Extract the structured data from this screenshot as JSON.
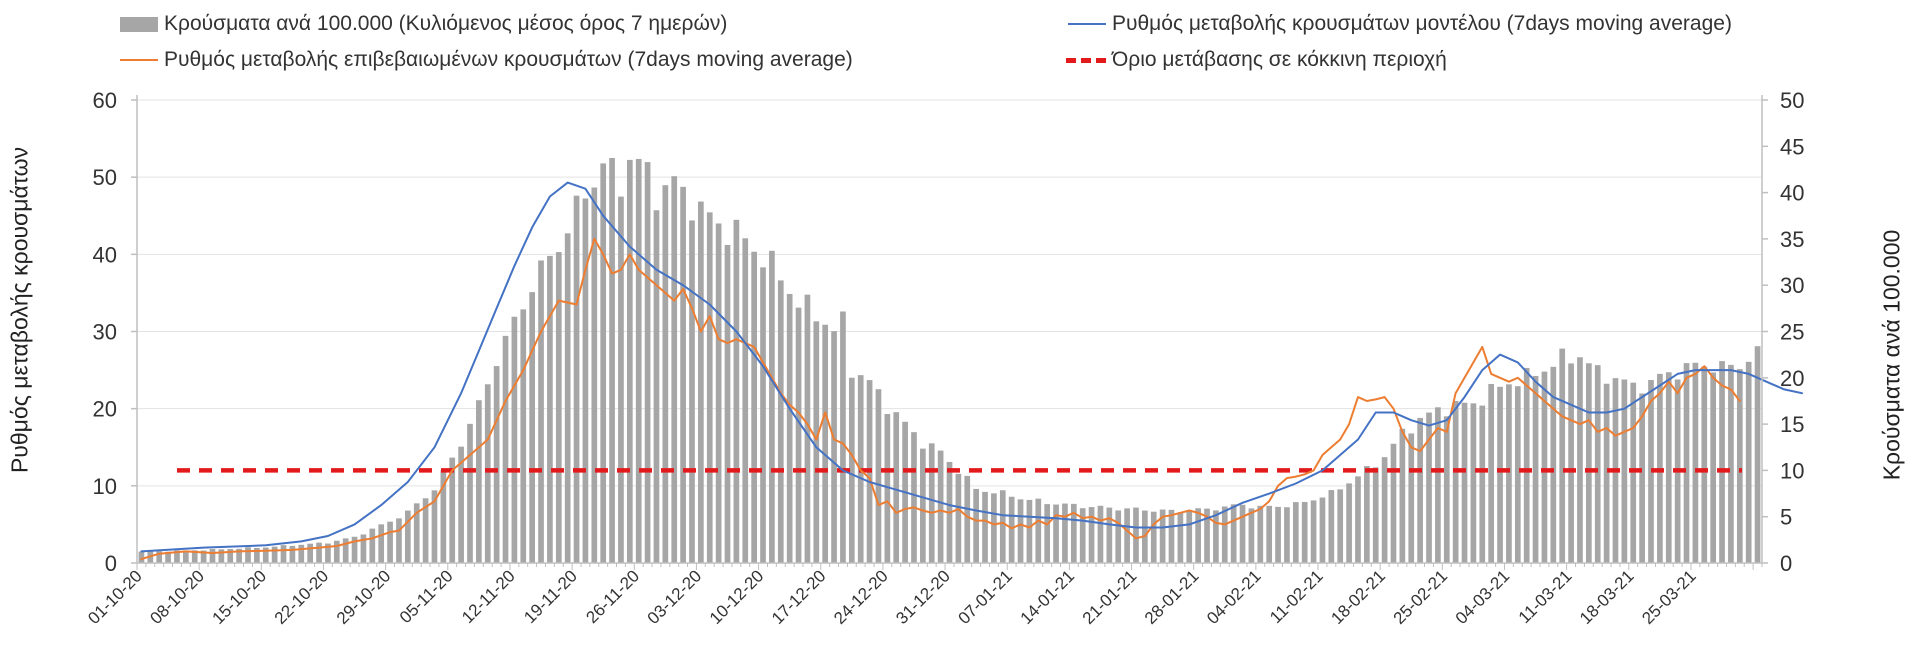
{
  "chart_data": {
    "type": "bar+line",
    "title": "",
    "legend": [
      {
        "label": "Κρούσματα ανά 100.000 (Κυλιόμενος μέσος όρος 7 ημερών)",
        "kind": "bar",
        "color": "#a6a6a6"
      },
      {
        "label": "Ρυθμός μεταβολής κρουσμάτων μοντέλου (7days moving average)",
        "kind": "line",
        "color": "#4472c4"
      },
      {
        "label": "Ρυθμός μεταβολής επιβεβαιωμένων κρουσμάτων (7days moving average)",
        "kind": "line",
        "color": "#ed7d31"
      },
      {
        "label": "Όριο μετάβασης σε κόκκινη περιοχή",
        "kind": "dashed",
        "color": "#e31a1c"
      }
    ],
    "ylabel_left": "Ρυθμός μεταβολής κρουσμάτων",
    "ylabel_right": "Κρούσματα ανά 100.000",
    "ylim_left": [
      0,
      60
    ],
    "ylim_right": [
      0,
      50
    ],
    "yticks_left": [
      "0",
      "10",
      "20",
      "30",
      "40",
      "50",
      "60"
    ],
    "yticks_right": [
      "0",
      "5",
      "10",
      "15",
      "20",
      "25",
      "30",
      "35",
      "40",
      "45",
      "50"
    ],
    "x_tick_labels": [
      "01-10-20",
      "08-10-20",
      "15-10-20",
      "22-10-20",
      "29-10-20",
      "05-11-20",
      "12-11-20",
      "19-11-20",
      "26-11-20",
      "03-12-20",
      "10-12-20",
      "17-12-20",
      "24-12-20",
      "31-12-20",
      "07-01-21",
      "14-01-21",
      "21-01-21",
      "28-01-21",
      "04-02-21",
      "11-02-21",
      "18-02-21",
      "25-02-21",
      "04-03-21",
      "11-03-21",
      "18-03-21",
      "25-03-21"
    ],
    "days": 183,
    "threshold_left_axis": 12,
    "bars_right_axis_anchors": [
      [
        0,
        1.2
      ],
      [
        7,
        1.4
      ],
      [
        14,
        1.7
      ],
      [
        21,
        2.2
      ],
      [
        24,
        2.8
      ],
      [
        28,
        4.5
      ],
      [
        30,
        5.5
      ],
      [
        33,
        8
      ],
      [
        36,
        13
      ],
      [
        38,
        17
      ],
      [
        40,
        22
      ],
      [
        42,
        26
      ],
      [
        44,
        30
      ],
      [
        46,
        33
      ],
      [
        48,
        36
      ],
      [
        50,
        40
      ],
      [
        52,
        43
      ],
      [
        54,
        41
      ],
      [
        55,
        44
      ],
      [
        57,
        42
      ],
      [
        58,
        40
      ],
      [
        60,
        41
      ],
      [
        61,
        40
      ],
      [
        63,
        38
      ],
      [
        66,
        36
      ],
      [
        68,
        35
      ],
      [
        70,
        33
      ],
      [
        72,
        31
      ],
      [
        74,
        28
      ],
      [
        76,
        27
      ],
      [
        78,
        25
      ],
      [
        79,
        26
      ],
      [
        80,
        21
      ],
      [
        82,
        19.5
      ],
      [
        84,
        17
      ],
      [
        86,
        15
      ],
      [
        88,
        13
      ],
      [
        90,
        12
      ],
      [
        92,
        10
      ],
      [
        94,
        8
      ],
      [
        97,
        7.5
      ],
      [
        100,
        6.8
      ],
      [
        104,
        6.3
      ],
      [
        108,
        6
      ],
      [
        112,
        5.8
      ],
      [
        116,
        5.6
      ],
      [
        120,
        5.8
      ],
      [
        124,
        6.3
      ],
      [
        126,
        6
      ],
      [
        130,
        6.3
      ],
      [
        134,
        7.5
      ],
      [
        138,
        10
      ],
      [
        140,
        11.5
      ],
      [
        142,
        14
      ],
      [
        144,
        15.5
      ],
      [
        146,
        16.5
      ],
      [
        148,
        17
      ],
      [
        150,
        17.2
      ],
      [
        152,
        18.5
      ],
      [
        154,
        19.5
      ],
      [
        156,
        20
      ],
      [
        158,
        21
      ],
      [
        160,
        22
      ],
      [
        162,
        22.5
      ],
      [
        164,
        20.5
      ],
      [
        166,
        20
      ],
      [
        168,
        19
      ],
      [
        170,
        19.5
      ],
      [
        172,
        20.5
      ],
      [
        174,
        21
      ],
      [
        176,
        21.5
      ],
      [
        178,
        21
      ],
      [
        180,
        21.5
      ],
      [
        182,
        22.5
      ]
    ],
    "model_rate_left_axis": [
      [
        0,
        1.5
      ],
      [
        7,
        2
      ],
      [
        14,
        2.3
      ],
      [
        18,
        2.8
      ],
      [
        21,
        3.5
      ],
      [
        24,
        5
      ],
      [
        27,
        7.5
      ],
      [
        30,
        10.5
      ],
      [
        33,
        15
      ],
      [
        36,
        22
      ],
      [
        38,
        27.5
      ],
      [
        40,
        33
      ],
      [
        42,
        38.5
      ],
      [
        44,
        43.5
      ],
      [
        46,
        47.5
      ],
      [
        48,
        49.3
      ],
      [
        50,
        48.5
      ],
      [
        52,
        45
      ],
      [
        55,
        41
      ],
      [
        58,
        38
      ],
      [
        61,
        36
      ],
      [
        64,
        33.5
      ],
      [
        67,
        30
      ],
      [
        70,
        25.5
      ],
      [
        73,
        20
      ],
      [
        76,
        15
      ],
      [
        79,
        12
      ],
      [
        82,
        10.5
      ],
      [
        85,
        9.5
      ],
      [
        88,
        8.5
      ],
      [
        91,
        7.5
      ],
      [
        94,
        6.8
      ],
      [
        97,
        6.2
      ],
      [
        100,
        6
      ],
      [
        103,
        5.8
      ],
      [
        106,
        5.5
      ],
      [
        109,
        5
      ],
      [
        112,
        4.6
      ],
      [
        115,
        4.6
      ],
      [
        118,
        5
      ],
      [
        121,
        6.2
      ],
      [
        124,
        7.8
      ],
      [
        127,
        9
      ],
      [
        130,
        10.3
      ],
      [
        133,
        12
      ],
      [
        135,
        14
      ],
      [
        137,
        16
      ],
      [
        139,
        19.5
      ],
      [
        141,
        19.5
      ],
      [
        143,
        18.5
      ],
      [
        145,
        17.8
      ],
      [
        147,
        18.5
      ],
      [
        149,
        21.5
      ],
      [
        151,
        25
      ],
      [
        153,
        27
      ],
      [
        155,
        26
      ],
      [
        157,
        23.5
      ],
      [
        159,
        21.5
      ],
      [
        161,
        20.5
      ],
      [
        163,
        19.5
      ],
      [
        165,
        19.5
      ],
      [
        167,
        20
      ],
      [
        169,
        21.5
      ],
      [
        171,
        23
      ],
      [
        173,
        24.5
      ],
      [
        175,
        25
      ],
      [
        177,
        25
      ],
      [
        179,
        25
      ],
      [
        181,
        24.5
      ],
      [
        183,
        23.5
      ],
      [
        185,
        22.5
      ],
      [
        187,
        22
      ]
    ],
    "confirmed_rate_left_axis": [
      [
        0,
        0.5
      ],
      [
        2,
        1.2
      ],
      [
        5,
        1.5
      ],
      [
        8,
        1.3
      ],
      [
        11,
        1.5
      ],
      [
        14,
        1.6
      ],
      [
        17,
        1.7
      ],
      [
        20,
        2
      ],
      [
        22,
        2.2
      ],
      [
        24,
        2.8
      ],
      [
        26,
        3.2
      ],
      [
        28,
        4
      ],
      [
        29,
        4.2
      ],
      [
        31,
        6.5
      ],
      [
        33,
        8
      ],
      [
        35,
        12
      ],
      [
        37,
        14
      ],
      [
        39,
        16
      ],
      [
        41,
        21
      ],
      [
        43,
        25
      ],
      [
        45,
        30
      ],
      [
        47,
        34
      ],
      [
        49,
        33.5
      ],
      [
        50,
        38
      ],
      [
        51,
        42
      ],
      [
        52,
        40
      ],
      [
        53,
        37.5
      ],
      [
        54,
        38
      ],
      [
        55,
        40
      ],
      [
        56,
        38
      ],
      [
        57,
        37
      ],
      [
        58,
        36
      ],
      [
        59,
        35
      ],
      [
        60,
        34
      ],
      [
        61,
        35.5
      ],
      [
        62,
        33
      ],
      [
        63,
        30
      ],
      [
        64,
        32
      ],
      [
        65,
        29
      ],
      [
        66,
        28.5
      ],
      [
        67,
        29
      ],
      [
        68,
        28.5
      ],
      [
        69,
        28
      ],
      [
        70,
        26
      ],
      [
        71,
        24
      ],
      [
        72,
        22
      ],
      [
        73,
        20.5
      ],
      [
        74,
        19.5
      ],
      [
        75,
        18
      ],
      [
        76,
        16
      ],
      [
        77,
        19.5
      ],
      [
        78,
        16
      ],
      [
        79,
        15.5
      ],
      [
        80,
        14
      ],
      [
        81,
        12
      ],
      [
        82,
        11
      ],
      [
        83,
        7.5
      ],
      [
        84,
        8
      ],
      [
        85,
        6.5
      ],
      [
        86,
        7
      ],
      [
        87,
        7.2
      ],
      [
        88,
        6.8
      ],
      [
        89,
        6.5
      ],
      [
        90,
        6.8
      ],
      [
        91,
        6.5
      ],
      [
        92,
        7
      ],
      [
        93,
        6
      ],
      [
        94,
        5.5
      ],
      [
        95,
        5.5
      ],
      [
        96,
        5
      ],
      [
        97,
        5.2
      ],
      [
        98,
        4.5
      ],
      [
        99,
        5
      ],
      [
        100,
        4.6
      ],
      [
        101,
        5.5
      ],
      [
        102,
        5
      ],
      [
        103,
        6.2
      ],
      [
        104,
        6
      ],
      [
        105,
        6.5
      ],
      [
        106,
        5.8
      ],
      [
        107,
        6
      ],
      [
        108,
        5.5
      ],
      [
        109,
        5.8
      ],
      [
        110,
        5.2
      ],
      [
        111,
        4.2
      ],
      [
        112,
        3.2
      ],
      [
        113,
        3.5
      ],
      [
        114,
        5
      ],
      [
        115,
        6
      ],
      [
        116,
        6.2
      ],
      [
        117,
        6.5
      ],
      [
        118,
        6.8
      ],
      [
        119,
        6.5
      ],
      [
        120,
        6
      ],
      [
        121,
        5.2
      ],
      [
        122,
        5
      ],
      [
        123,
        5.5
      ],
      [
        124,
        6
      ],
      [
        125,
        6.5
      ],
      [
        126,
        7
      ],
      [
        127,
        8
      ],
      [
        128,
        10
      ],
      [
        129,
        11
      ],
      [
        130,
        11.2
      ],
      [
        131,
        11.5
      ],
      [
        132,
        12
      ],
      [
        133,
        14
      ],
      [
        134,
        15
      ],
      [
        135,
        16
      ],
      [
        136,
        18
      ],
      [
        137,
        21.5
      ],
      [
        138,
        21
      ],
      [
        139,
        21.2
      ],
      [
        140,
        21.5
      ],
      [
        141,
        20
      ],
      [
        142,
        17
      ],
      [
        143,
        15
      ],
      [
        144,
        14.5
      ],
      [
        145,
        16
      ],
      [
        146,
        17.5
      ],
      [
        147,
        17
      ],
      [
        148,
        22
      ],
      [
        149,
        24
      ],
      [
        150,
        26
      ],
      [
        151,
        28
      ],
      [
        152,
        24.5
      ],
      [
        153,
        24
      ],
      [
        154,
        23.5
      ],
      [
        155,
        24
      ],
      [
        156,
        23
      ],
      [
        157,
        22
      ],
      [
        158,
        21
      ],
      [
        159,
        20
      ],
      [
        160,
        19
      ],
      [
        161,
        18.5
      ],
      [
        162,
        18
      ],
      [
        163,
        18.5
      ],
      [
        164,
        17
      ],
      [
        165,
        17.5
      ],
      [
        166,
        16.5
      ],
      [
        167,
        17
      ],
      [
        168,
        17.5
      ],
      [
        169,
        19
      ],
      [
        170,
        21
      ],
      [
        171,
        22
      ],
      [
        172,
        23.5
      ],
      [
        173,
        22
      ],
      [
        174,
        24
      ],
      [
        175,
        24.5
      ],
      [
        176,
        25.5
      ],
      [
        177,
        24
      ],
      [
        178,
        23
      ],
      [
        179,
        22.5
      ],
      [
        180,
        21
      ]
    ]
  }
}
